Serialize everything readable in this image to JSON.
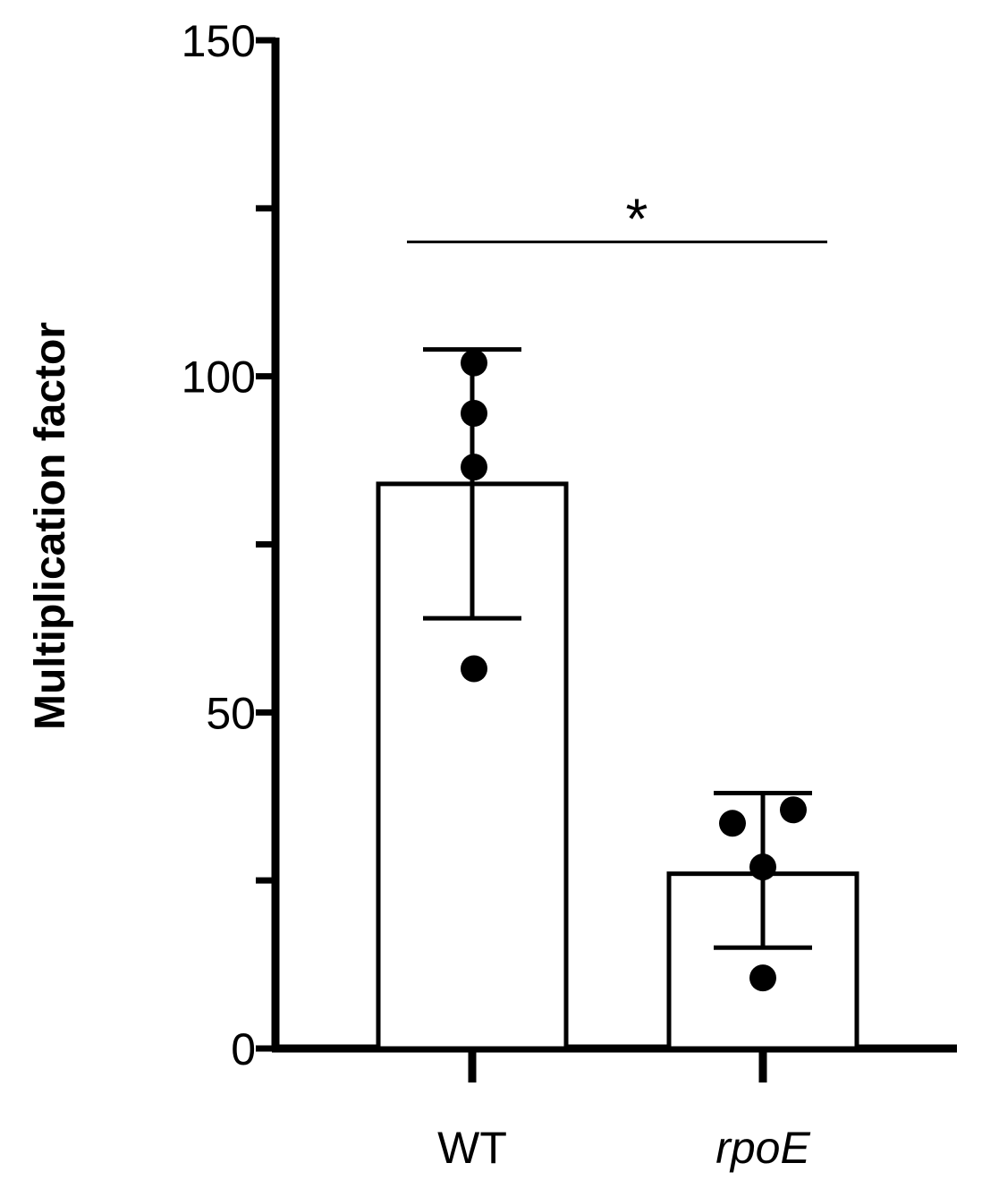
{
  "chart_data": {
    "type": "bar",
    "title": "",
    "xlabel": "",
    "ylabel": "Multiplication factor",
    "ylim": [
      0,
      150
    ],
    "y_ticks_major": [
      0,
      50,
      100,
      150
    ],
    "y_ticks_minor": [
      25,
      75,
      125
    ],
    "categories": [
      "WT",
      "rpoE"
    ],
    "category_italic": [
      false,
      true
    ],
    "values": [
      84,
      26
    ],
    "error_upper": [
      104,
      38
    ],
    "error_lower": [
      64,
      15
    ],
    "points": [
      [
        102,
        94.5,
        86.5,
        56.5
      ],
      [
        33.5,
        35.5,
        27,
        10.5
      ]
    ],
    "significance": {
      "from": "WT",
      "to": "rpoE",
      "label": "*",
      "y": 120
    },
    "grid": false,
    "legend": "none",
    "bar_fill": "#ffffff",
    "bar_stroke": "#000000"
  }
}
